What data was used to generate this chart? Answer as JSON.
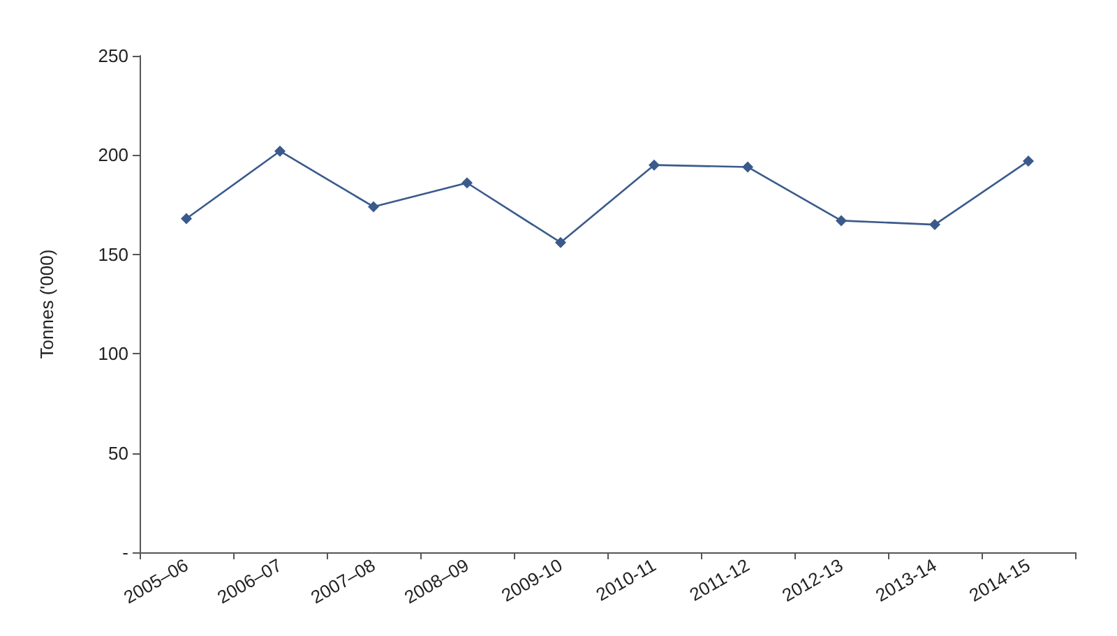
{
  "chart_data": {
    "type": "line",
    "ylabel": "Tonnes ('000)",
    "categories": [
      "2005–06",
      "2006–07",
      "2007–08",
      "2008–09",
      "2009-10",
      "2010-11",
      "2011-12",
      "2012-13",
      "2013-14",
      "2014-15"
    ],
    "series": [
      {
        "color": "#3a5a8c",
        "values": [
          168,
          202,
          174,
          186,
          156,
          195,
          194,
          167,
          165,
          197
        ]
      }
    ],
    "ylim": [
      0,
      250
    ],
    "yticks": [
      {
        "value": 0,
        "label": "-"
      },
      50,
      100,
      150,
      200,
      250
    ],
    "grid": false,
    "marker": "diamond",
    "line_style": "solid"
  }
}
